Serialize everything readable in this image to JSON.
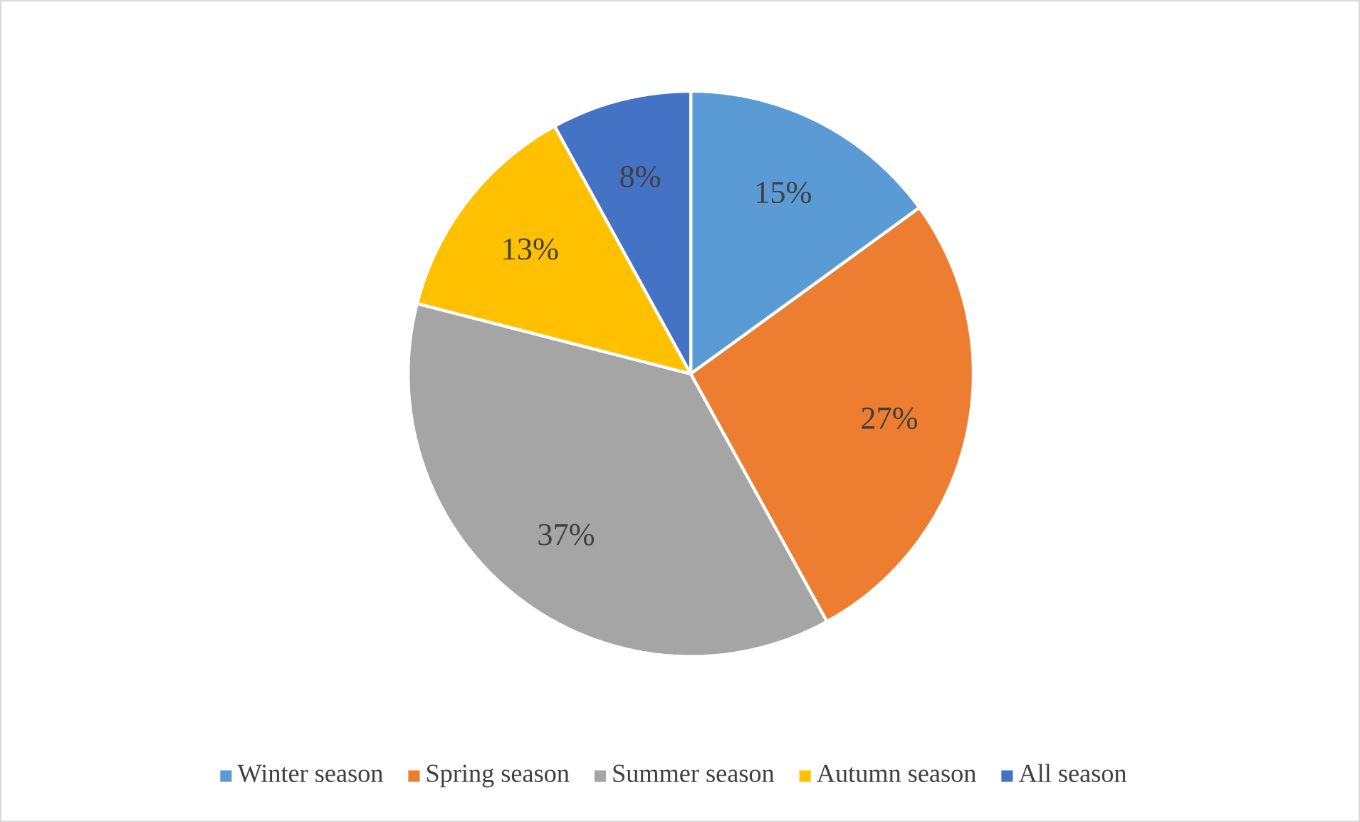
{
  "chart_data": {
    "type": "pie",
    "categories": [
      "Winter season",
      "Spring season",
      "Summer season",
      "Autumn season",
      "All season"
    ],
    "values": [
      15,
      27,
      37,
      13,
      8
    ],
    "value_labels": [
      "15%",
      "27%",
      "37%",
      "13%",
      "8%"
    ],
    "colors": [
      "#5b9bd5",
      "#ed7d31",
      "#a5a5a5",
      "#ffc000",
      "#4472c4"
    ],
    "legend": "bottom"
  }
}
